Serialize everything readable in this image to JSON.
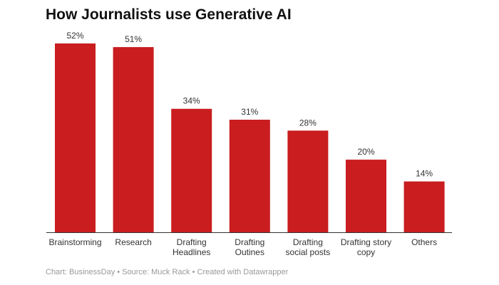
{
  "chart_data": {
    "type": "bar",
    "title": "How Journalists use Generative AI",
    "categories": [
      [
        "Brainstorming"
      ],
      [
        "Research"
      ],
      [
        "Drafting",
        "Headlines"
      ],
      [
        "Drafting",
        "Outines"
      ],
      [
        "Drafting",
        "social posts"
      ],
      [
        "Drafting story",
        "copy"
      ],
      [
        "Others"
      ]
    ],
    "values": [
      52,
      51,
      34,
      31,
      28,
      20,
      14
    ],
    "value_suffix": "%",
    "ylim": [
      0,
      52
    ],
    "grid": false,
    "bar_color": "#c91d1f",
    "xlabel": "",
    "ylabel": ""
  },
  "footer": "Chart: BusinessDay • Source: Muck Rack • Created with Datawrapper"
}
